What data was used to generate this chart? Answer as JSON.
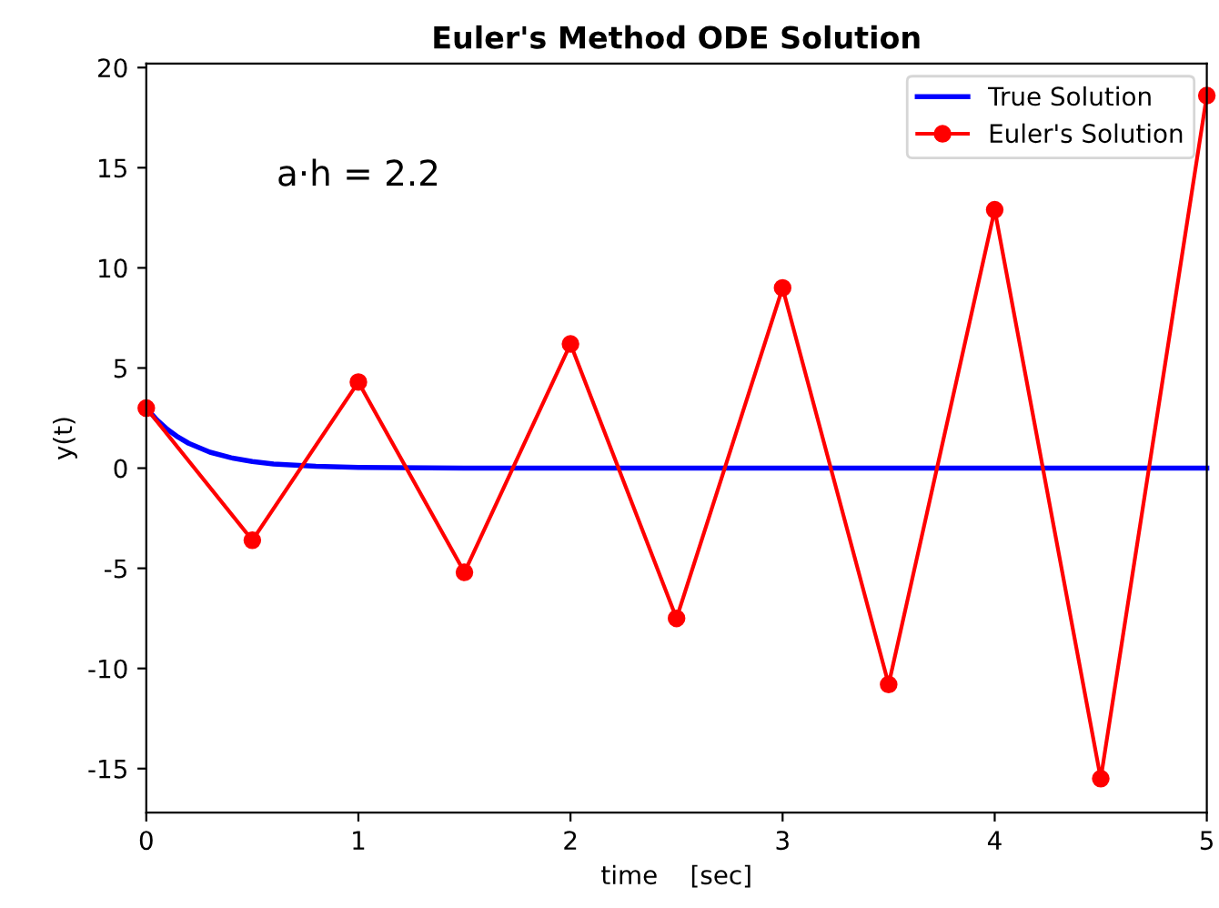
{
  "chart_data": {
    "type": "line",
    "title": "Euler's Method ODE Solution",
    "xlabel": "time    [sec]",
    "ylabel": "y(t)",
    "annotations": [
      "a·h = 2.2"
    ],
    "series": [
      {
        "name": "True Solution",
        "color": "#0000ff",
        "marker": "none",
        "x": [
          0,
          0.05,
          0.1,
          0.15,
          0.2,
          0.3,
          0.4,
          0.5,
          0.6,
          0.8,
          1.0,
          1.5,
          2,
          3,
          4,
          5
        ],
        "values": [
          3,
          2.41,
          1.93,
          1.55,
          1.24,
          0.8,
          0.52,
          0.33,
          0.21,
          0.09,
          0.04,
          0,
          0,
          0,
          0,
          0
        ]
      },
      {
        "name": "Euler's Solution",
        "color": "#ff0000",
        "marker": "circle",
        "x": [
          0,
          0.5,
          1,
          1.5,
          2,
          2.5,
          3,
          3.5,
          4,
          4.5,
          5
        ],
        "values": [
          3,
          -3.6,
          4.3,
          -5.2,
          6.2,
          -7.5,
          9.0,
          -10.8,
          12.9,
          -15.5,
          18.6
        ]
      }
    ],
    "xlim": [
      0,
      5
    ],
    "xticks": [
      0,
      1,
      2,
      3,
      4,
      5
    ],
    "ylim": [
      -17.2,
      20.2
    ],
    "yticks": [
      -15,
      -10,
      -5,
      0,
      5,
      10,
      15,
      20
    ],
    "legend": "top right",
    "grid": false,
    "line_style": "solid"
  }
}
